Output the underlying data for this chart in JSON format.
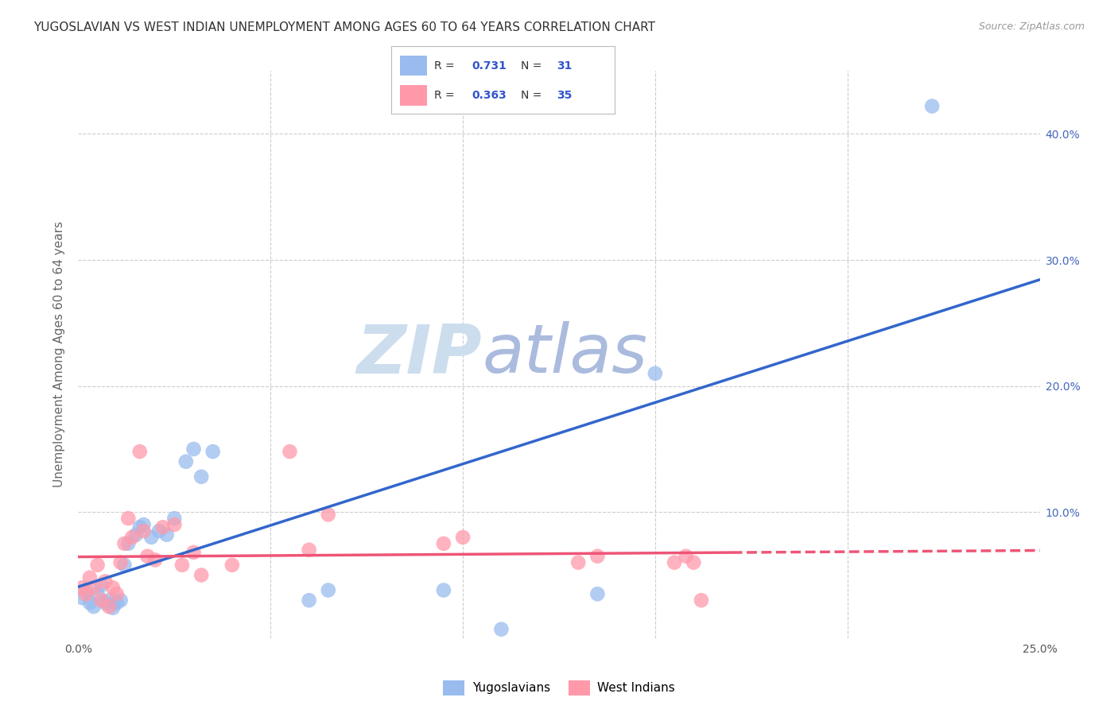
{
  "title": "YUGOSLAVIAN VS WEST INDIAN UNEMPLOYMENT AMONG AGES 60 TO 64 YEARS CORRELATION CHART",
  "source": "Source: ZipAtlas.com",
  "ylabel": "Unemployment Among Ages 60 to 64 years",
  "xlim": [
    0.0,
    0.25
  ],
  "ylim": [
    -0.02,
    0.45
  ],
  "plot_ylim": [
    0.0,
    0.45
  ],
  "yugoslavian_R": 0.731,
  "yugoslavian_N": 31,
  "west_indian_R": 0.363,
  "west_indian_N": 35,
  "blue_scatter_color": "#99BBEE",
  "pink_scatter_color": "#FF99AA",
  "blue_line_color": "#3366CC",
  "pink_line_color": "#EE5577",
  "legend_color": "#3355CC",
  "watermark": "ZIPatlas",
  "watermark_zip_color": "#CCDDEE",
  "watermark_atlas_color": "#AABBDD",
  "background_color": "#FFFFFF",
  "grid_color": "#CCCCCC",
  "title_color": "#333333",
  "source_color": "#999999",
  "ylabel_color": "#666666",
  "right_tick_color": "#4466BB",
  "yug_x": [
    0.001,
    0.002,
    0.003,
    0.004,
    0.005,
    0.006,
    0.007,
    0.008,
    0.009,
    0.01,
    0.011,
    0.012,
    0.013,
    0.015,
    0.016,
    0.017,
    0.019,
    0.021,
    0.023,
    0.025,
    0.028,
    0.03,
    0.032,
    0.035,
    0.06,
    0.065,
    0.095,
    0.11,
    0.135,
    0.15,
    0.222
  ],
  "yug_y": [
    0.032,
    0.038,
    0.028,
    0.025,
    0.035,
    0.042,
    0.028,
    0.03,
    0.024,
    0.028,
    0.03,
    0.058,
    0.075,
    0.082,
    0.088,
    0.09,
    0.08,
    0.085,
    0.082,
    0.095,
    0.14,
    0.15,
    0.128,
    0.148,
    0.03,
    0.038,
    0.038,
    0.007,
    0.035,
    0.21,
    0.422
  ],
  "wi_x": [
    0.001,
    0.002,
    0.003,
    0.004,
    0.005,
    0.006,
    0.007,
    0.008,
    0.009,
    0.01,
    0.011,
    0.012,
    0.013,
    0.014,
    0.016,
    0.017,
    0.018,
    0.02,
    0.022,
    0.025,
    0.027,
    0.03,
    0.032,
    0.04,
    0.055,
    0.06,
    0.065,
    0.095,
    0.1,
    0.13,
    0.135,
    0.155,
    0.158,
    0.16,
    0.162
  ],
  "wi_y": [
    0.04,
    0.035,
    0.048,
    0.04,
    0.058,
    0.03,
    0.045,
    0.025,
    0.04,
    0.035,
    0.06,
    0.075,
    0.095,
    0.08,
    0.148,
    0.085,
    0.065,
    0.062,
    0.088,
    0.09,
    0.058,
    0.068,
    0.05,
    0.058,
    0.148,
    0.07,
    0.098,
    0.075,
    0.08,
    0.06,
    0.065,
    0.06,
    0.065,
    0.06,
    0.03
  ]
}
